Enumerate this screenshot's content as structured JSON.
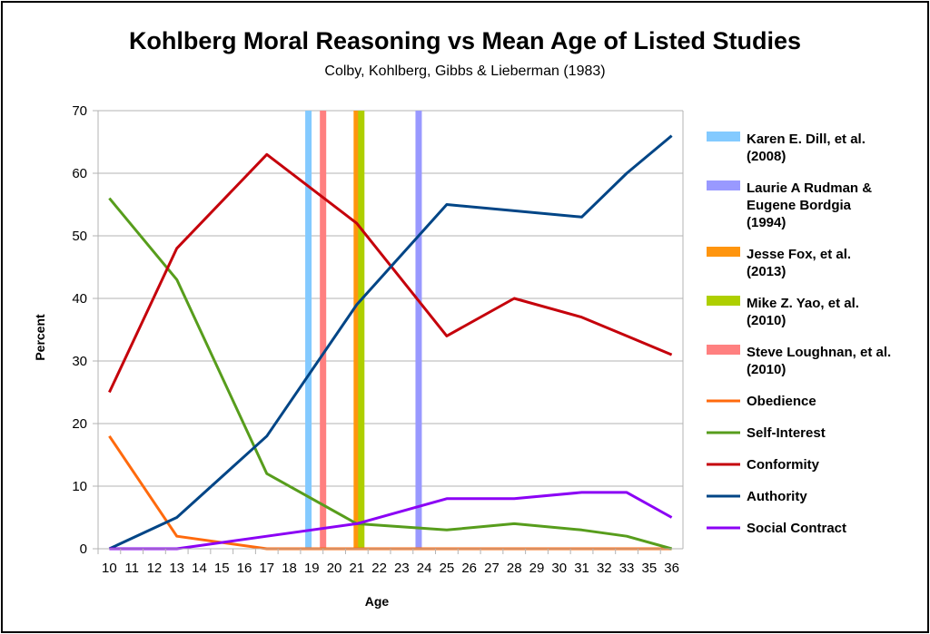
{
  "chart_data": {
    "type": "line",
    "title": "Kohlberg Moral Reasoning vs Mean Age of Listed Studies",
    "subtitle": "Colby, Kohlberg, Gibbs & Lieberman (1983)",
    "xlabel": "Age",
    "ylabel": "Percent",
    "ylim": [
      0,
      70
    ],
    "yticks": [
      0,
      10,
      20,
      30,
      40,
      50,
      60,
      70
    ],
    "categories": [
      "10",
      "11",
      "12",
      "13",
      "14",
      "15",
      "16",
      "17",
      "18",
      "19",
      "20",
      "21",
      "22",
      "23",
      "24",
      "25",
      "26",
      "27",
      "28",
      "29",
      "30",
      "31",
      "32",
      "33",
      "35",
      "36"
    ],
    "grid": "horizontal",
    "legend_position": "right",
    "series": [
      {
        "name": "Obedience",
        "color": "#ff6a0d",
        "x": [
          "10",
          "13",
          "17",
          "36"
        ],
        "values": [
          18,
          2,
          0,
          0
        ]
      },
      {
        "name": "Self-Interest",
        "color": "#579d1c",
        "x": [
          "10",
          "13",
          "17",
          "21",
          "25",
          "28",
          "31",
          "33",
          "36"
        ],
        "values": [
          56,
          43,
          12,
          4,
          3,
          4,
          3,
          2,
          0
        ]
      },
      {
        "name": "Conformity",
        "color": "#c5000b",
        "x": [
          "10",
          "13",
          "17",
          "21",
          "25",
          "28",
          "31",
          "33",
          "36"
        ],
        "values": [
          25,
          48,
          63,
          52,
          34,
          40,
          37,
          34,
          31
        ]
      },
      {
        "name": "Authority",
        "color": "#004586",
        "x": [
          "10",
          "13",
          "17",
          "21",
          "25",
          "28",
          "31",
          "33",
          "36"
        ],
        "values": [
          0,
          5,
          18,
          39,
          55,
          54,
          53,
          60,
          66
        ]
      },
      {
        "name": "Social Contract",
        "color": "#8b00f5",
        "x": [
          "10",
          "13",
          "17",
          "21",
          "25",
          "28",
          "31",
          "33",
          "36"
        ],
        "values": [
          0,
          0,
          2,
          4,
          8,
          8,
          9,
          9,
          5
        ]
      }
    ],
    "studies": [
      {
        "name": "Karen E. Dill, et al. (2008)",
        "lines": [
          "Karen E. Dill, et al.",
          "(2008)"
        ],
        "age": 18.85,
        "color": "#83caff"
      },
      {
        "name": "Laurie A Rudman & Eugene Bordgia (1994)",
        "lines": [
          "Laurie A Rudman &",
          "Eugene Bordgia",
          "(1994)"
        ],
        "age": 23.75,
        "color": "#9999ff"
      },
      {
        "name": "Jesse Fox, et al. (2013)",
        "lines": [
          "Jesse Fox, et al.",
          "(2013)"
        ],
        "age": 21.0,
        "color": "#ff950e"
      },
      {
        "name": "Mike Z. Yao, et al. (2010)",
        "lines": [
          "Mike Z. Yao, et al.",
          "(2010)"
        ],
        "age": 21.2,
        "color": "#aecf00"
      },
      {
        "name": "Steve Loughnan, et al. (2010)",
        "lines": [
          "Steve Loughnan, et al.",
          "(2010)"
        ],
        "age": 19.5,
        "color": "#ff8080"
      }
    ]
  }
}
